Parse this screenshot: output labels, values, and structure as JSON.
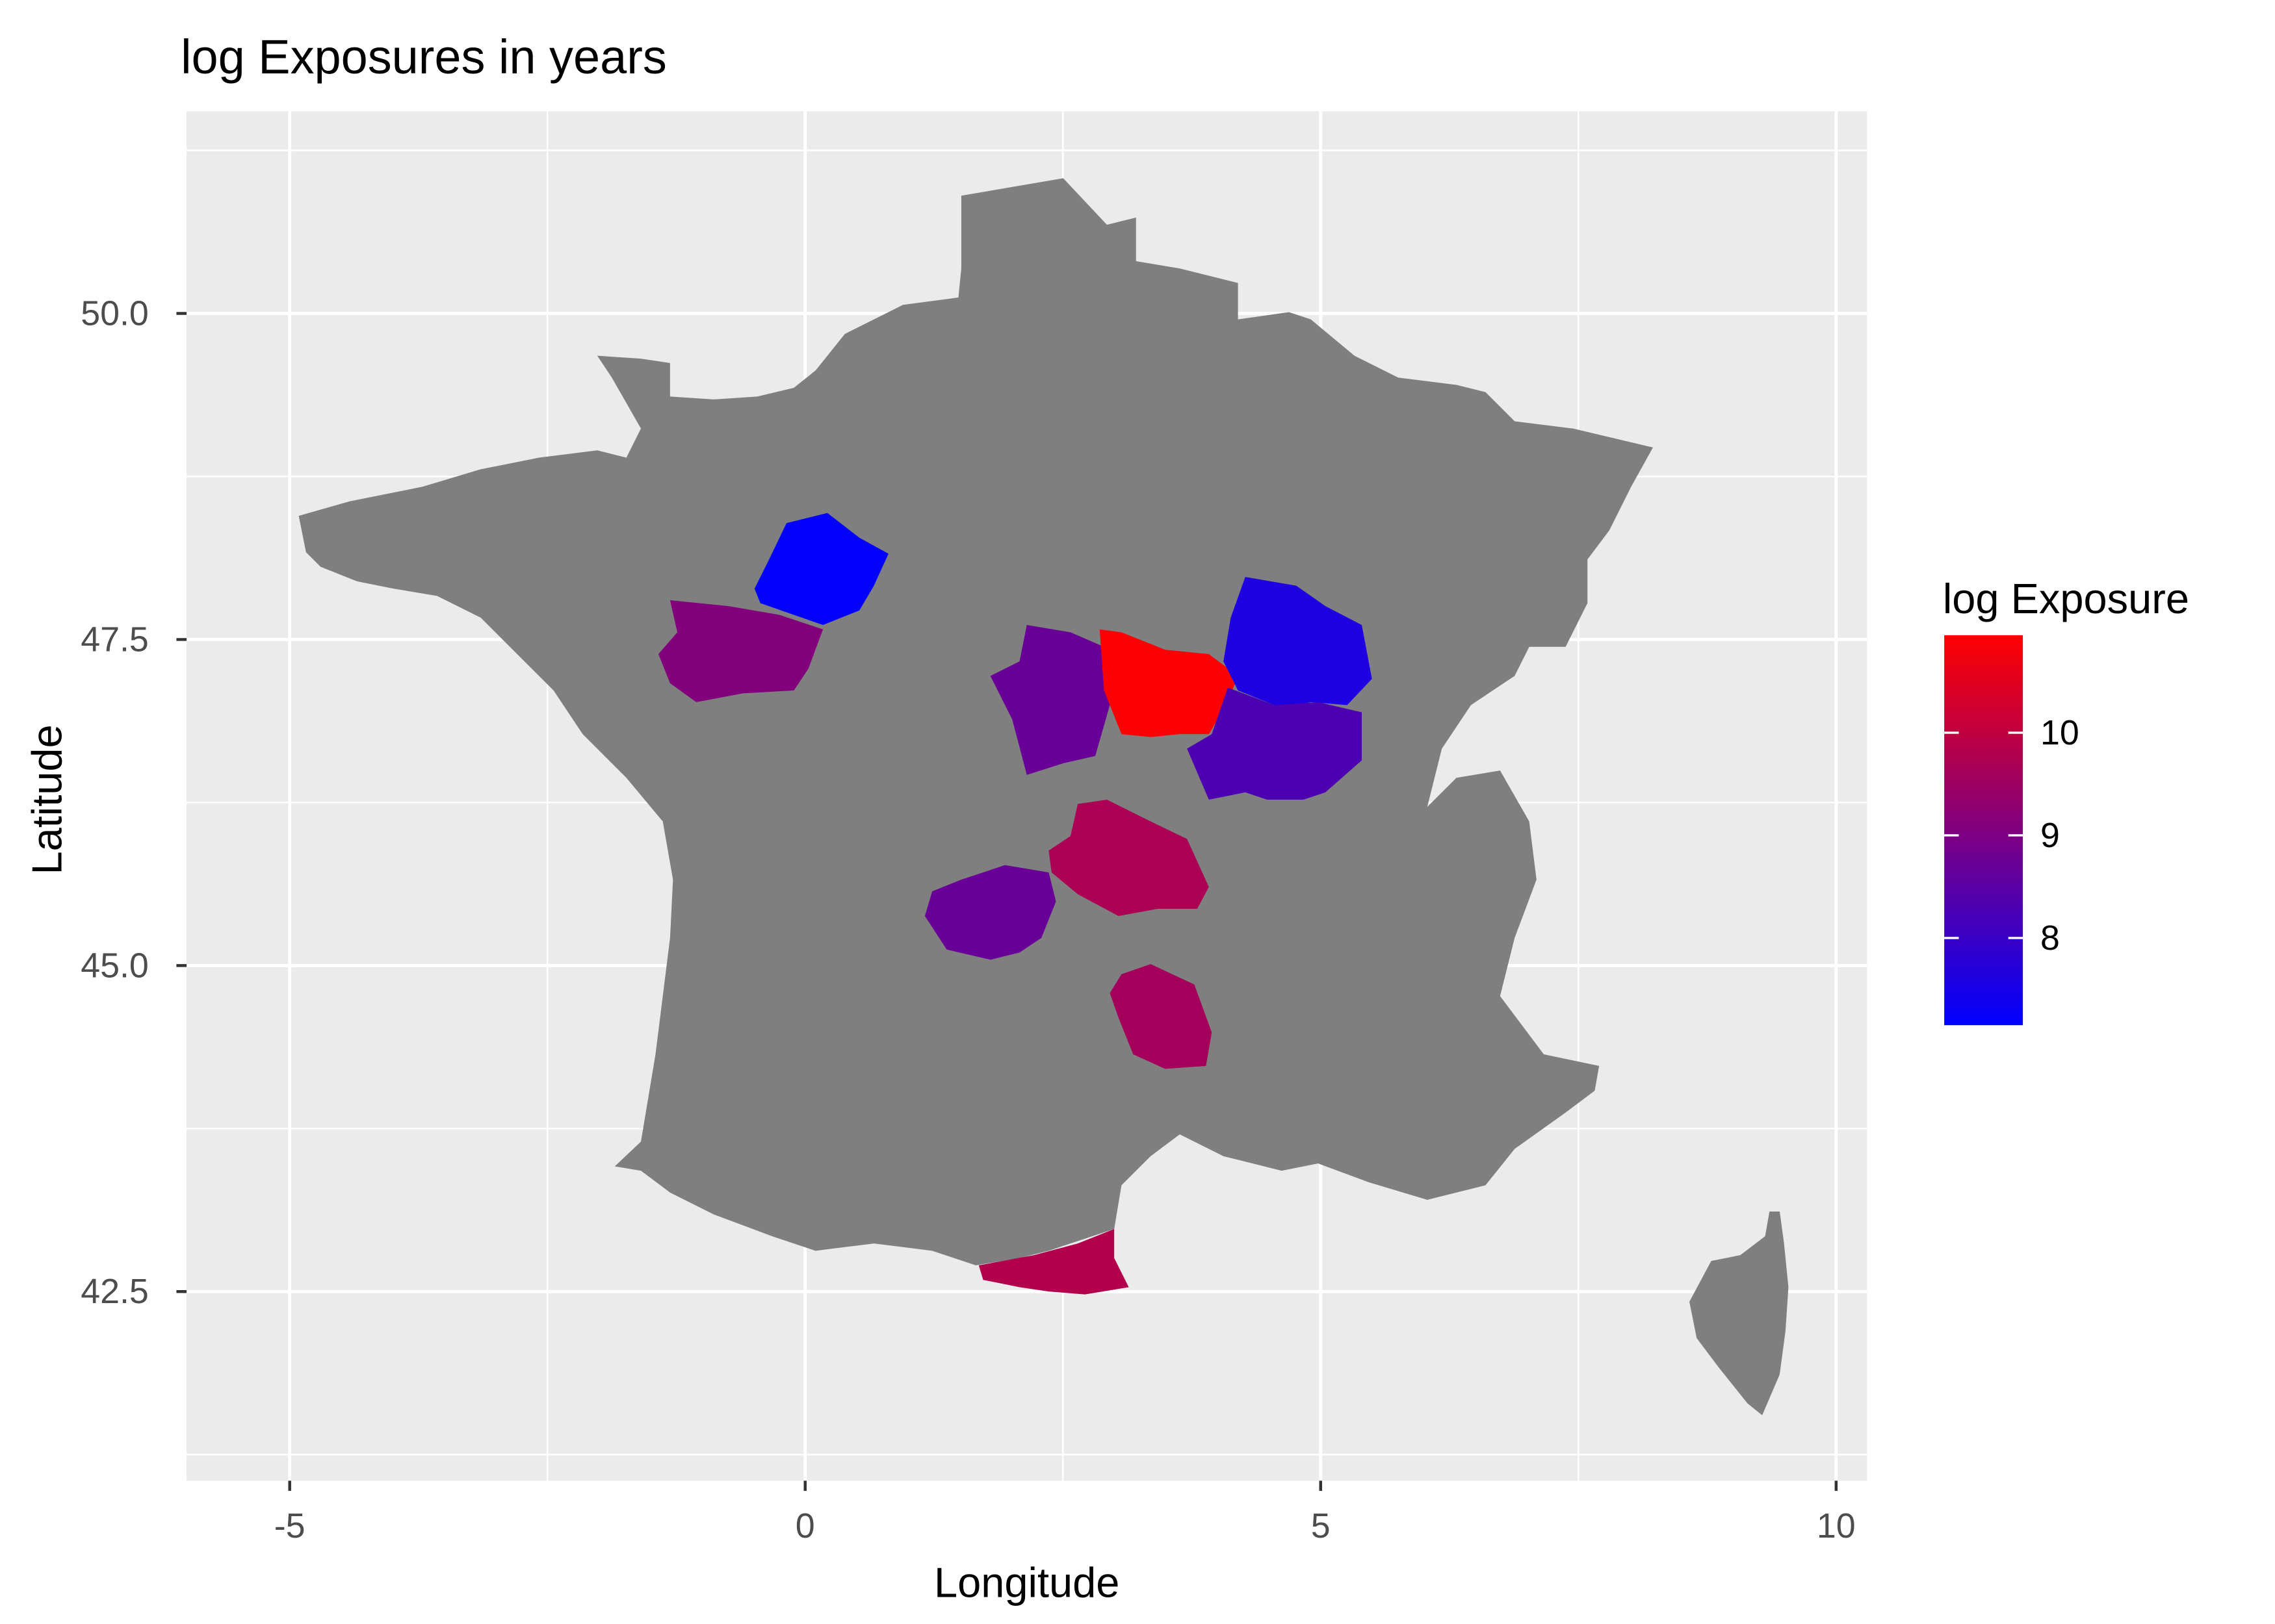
{
  "title": "log Exposures in years",
  "x_axis": {
    "label": "Longitude",
    "ticks": [
      "-5",
      "0",
      "5",
      "10"
    ],
    "tick_values": [
      -5,
      0,
      5,
      10
    ],
    "range": [
      -6.0,
      10.3
    ]
  },
  "y_axis": {
    "label": "Latitude",
    "ticks": [
      "42.5",
      "45.0",
      "47.5",
      "50.0"
    ],
    "tick_values": [
      42.5,
      45.0,
      47.5,
      50.0
    ],
    "range": [
      41.05,
      51.55
    ]
  },
  "legend": {
    "title": "log Exposure",
    "ticks": [
      "10",
      "9",
      "8"
    ],
    "tick_values": [
      10,
      9,
      8
    ],
    "range": [
      7.15,
      10.95
    ],
    "low_color": "#0000FF",
    "high_color": "#FF0000",
    "placement": "right"
  },
  "colors": {
    "panel": "#EBEBEB",
    "grid": "#FFFFFF",
    "land": "#7F7F7F"
  },
  "chart_data": {
    "type": "choropleth",
    "region": "France",
    "highlighted_departments": [
      {
        "lon": 0.27,
        "lat": 47.95,
        "log_exposure": 7.2
      },
      {
        "lon": -0.55,
        "lat": 47.35,
        "log_exposure": 9.1
      },
      {
        "lon": 2.45,
        "lat": 47.05,
        "log_exposure": 8.7
      },
      {
        "lon": 3.5,
        "lat": 47.1,
        "log_exposure": 10.9
      },
      {
        "lon": 4.65,
        "lat": 47.45,
        "log_exposure": 7.6
      },
      {
        "lon": 4.6,
        "lat": 46.7,
        "log_exposure": 8.3
      },
      {
        "lon": 3.05,
        "lat": 45.75,
        "log_exposure": 9.7
      },
      {
        "lon": 1.85,
        "lat": 45.35,
        "log_exposure": 8.7
      },
      {
        "lon": 3.5,
        "lat": 44.55,
        "log_exposure": 9.6
      },
      {
        "lon": 2.6,
        "lat": 42.6,
        "log_exposure": 9.8
      }
    ]
  }
}
